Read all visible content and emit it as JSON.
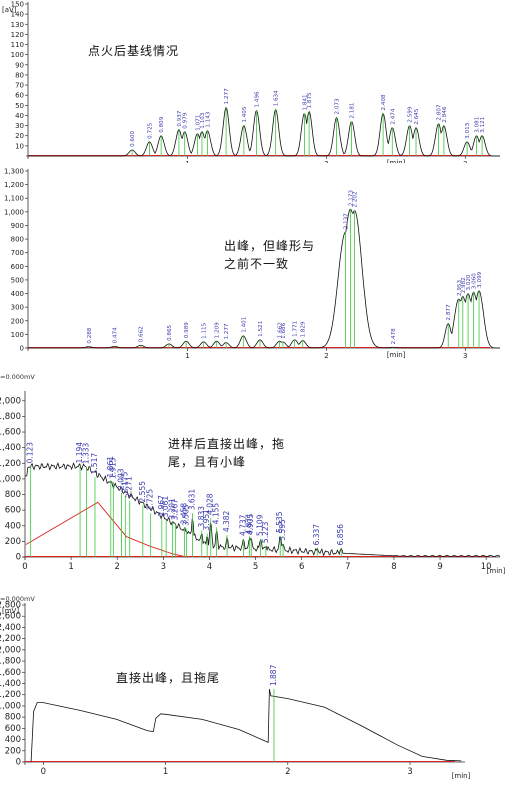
{
  "panels": [
    {
      "annotation": "点火后基线情况",
      "corner_label": "",
      "chart_data": {
        "type": "line",
        "xlabel": "[min]",
        "ylabel": "[aV]",
        "xlim": [
          -0.15,
          3.25
        ],
        "ylim": [
          0,
          150
        ],
        "xticks": [
          1,
          2,
          3
        ],
        "yticks": [
          10,
          20,
          30,
          40,
          50,
          60,
          70,
          80,
          90,
          100,
          110,
          120,
          130,
          140,
          150
        ],
        "peaks": [
          {
            "x": 0.6,
            "label": "0.600",
            "h": 6
          },
          {
            "x": 0.725,
            "label": "0.725",
            "h": 14
          },
          {
            "x": 0.809,
            "label": "0.809",
            "h": 20
          },
          {
            "x": 0.937,
            "label": "0.937",
            "h": 26
          },
          {
            "x": 0.979,
            "label": "0.979",
            "h": 24
          },
          {
            "x": 1.071,
            "label": "1.071",
            "h": 22
          },
          {
            "x": 1.103,
            "label": "1.103",
            "h": 24
          },
          {
            "x": 1.143,
            "label": "1.143",
            "h": 25
          },
          {
            "x": 1.277,
            "label": "1.277",
            "h": 48
          },
          {
            "x": 1.405,
            "label": "1.405",
            "h": 30
          },
          {
            "x": 1.496,
            "label": "1.496",
            "h": 45
          },
          {
            "x": 1.634,
            "label": "1.634",
            "h": 46
          },
          {
            "x": 1.841,
            "label": "1.841",
            "h": 42
          },
          {
            "x": 1.875,
            "label": "1.875",
            "h": 44
          },
          {
            "x": 2.073,
            "label": "2.073",
            "h": 38
          },
          {
            "x": 2.181,
            "label": "2.181",
            "h": 34
          },
          {
            "x": 2.408,
            "label": "2.408",
            "h": 42
          },
          {
            "x": 2.474,
            "label": "2.474",
            "h": 28
          },
          {
            "x": 2.599,
            "label": "2.599",
            "h": 30
          },
          {
            "x": 2.645,
            "label": "2.645",
            "h": 28
          },
          {
            "x": 2.807,
            "label": "2.807",
            "h": 32
          },
          {
            "x": 2.846,
            "label": "2.846",
            "h": 30
          },
          {
            "x": 3.013,
            "label": "3.013",
            "h": 14
          },
          {
            "x": 3.081,
            "label": "3.081",
            "h": 20
          },
          {
            "x": 3.121,
            "label": "3.121",
            "h": 20
          }
        ]
      }
    },
    {
      "annotation": "出峰，但峰形与\n之前不一致",
      "corner_label": "",
      "chart_data": {
        "type": "line",
        "xlabel": "[min]",
        "ylabel": "",
        "xlim": [
          -0.15,
          3.25
        ],
        "ylim": [
          0,
          1300
        ],
        "xticks": [
          1,
          2,
          3
        ],
        "yticks": [
          0,
          100,
          200,
          300,
          400,
          500,
          600,
          700,
          800,
          900,
          "1,000",
          "1,100",
          "1,200",
          "1,300"
        ],
        "peaks": [
          {
            "x": 0.288,
            "label": "0.288",
            "h": 10
          },
          {
            "x": 0.474,
            "label": "0.474",
            "h": 12
          },
          {
            "x": 0.662,
            "label": "0.662",
            "h": 20
          },
          {
            "x": 0.865,
            "label": "0.865",
            "h": 30
          },
          {
            "x": 0.989,
            "label": "0.989",
            "h": 50
          },
          {
            "x": 1.115,
            "label": "1.115",
            "h": 45
          },
          {
            "x": 1.209,
            "label": "1.209",
            "h": 50
          },
          {
            "x": 1.277,
            "label": "1.277",
            "h": 40
          },
          {
            "x": 1.401,
            "label": "1.401",
            "h": 90
          },
          {
            "x": 1.521,
            "label": "1.521",
            "h": 60
          },
          {
            "x": 1.662,
            "label": "1.662",
            "h": 50
          },
          {
            "x": 1.686,
            "label": "1.686",
            "h": 45
          },
          {
            "x": 1.771,
            "label": "1.771",
            "h": 60
          },
          {
            "x": 1.829,
            "label": "1.829",
            "h": 55
          },
          {
            "x": 2.137,
            "label": "2.137",
            "h": 850
          },
          {
            "x": 2.173,
            "label": "2.173",
            "h": 1020
          },
          {
            "x": 2.202,
            "label": "2.202",
            "h": 1010
          },
          {
            "x": 2.478,
            "label": "2.478",
            "h": 5
          },
          {
            "x": 2.877,
            "label": "2.877",
            "h": 180
          },
          {
            "x": 2.953,
            "label": "2.953",
            "h": 360
          },
          {
            "x": 2.982,
            "label": "2.982",
            "h": 380
          },
          {
            "x": 3.02,
            "label": "3.020",
            "h": 400
          },
          {
            "x": 3.06,
            "label": "3.060",
            "h": 410
          },
          {
            "x": 3.099,
            "label": "3.099",
            "h": 420
          }
        ]
      }
    },
    {
      "annotation": "进样后直接出峰，拖\n尾，且有小峰",
      "corner_label": "=0.000mV",
      "chart_data": {
        "type": "line",
        "xlabel": "[min]",
        "ylabel": "",
        "xlim": [
          0,
          10.3
        ],
        "ylim": [
          0,
          2100
        ],
        "xticks": [
          0,
          1,
          2,
          3,
          4,
          5,
          6,
          7,
          8,
          9,
          10
        ],
        "yticks": [
          0,
          200,
          400,
          600,
          800,
          "1,000",
          "1,200",
          "1,400",
          "1,600",
          "1,800",
          "2,000"
        ],
        "peaks": [
          {
            "x": 0.123,
            "label": "0.123",
            "h": 1160
          },
          {
            "x": 1.194,
            "label": "1.194",
            "h": 1160
          },
          {
            "x": 1.333,
            "label": "1.333",
            "h": 1150
          },
          {
            "x": 1.517,
            "label": "1.517",
            "h": 1020
          },
          {
            "x": 1.861,
            "label": "1.861",
            "h": 980
          },
          {
            "x": 1.915,
            "label": "1.915",
            "h": 960
          },
          {
            "x": 2.093,
            "label": "2.093",
            "h": 820
          },
          {
            "x": 2.175,
            "label": "2.175",
            "h": 780
          },
          {
            "x": 2.271,
            "label": "2.271",
            "h": 720
          },
          {
            "x": 2.555,
            "label": "2.555",
            "h": 660
          },
          {
            "x": 2.725,
            "label": "2.725",
            "h": 560
          },
          {
            "x": 2.967,
            "label": "2.967",
            "h": 480
          },
          {
            "x": 3.061,
            "label": "3.061",
            "h": 470
          },
          {
            "x": 3.201,
            "label": "3.201",
            "h": 440
          },
          {
            "x": 3.267,
            "label": "3.267",
            "h": 430
          },
          {
            "x": 3.458,
            "label": "3.458",
            "h": 380
          },
          {
            "x": 3.505,
            "label": "3.505",
            "h": 360
          },
          {
            "x": 3.631,
            "label": "3.631",
            "h": 560
          },
          {
            "x": 3.833,
            "label": "3.833",
            "h": 340
          },
          {
            "x": 3.951,
            "label": "3.951",
            "h": 300
          },
          {
            "x": 4.028,
            "label": "4.028",
            "h": 500
          },
          {
            "x": 4.155,
            "label": "4.155",
            "h": 380
          },
          {
            "x": 4.382,
            "label": "4.382",
            "h": 280
          },
          {
            "x": 4.737,
            "label": "4.737",
            "h": 230
          },
          {
            "x": 4.871,
            "label": "4.871",
            "h": 250
          },
          {
            "x": 4.905,
            "label": "4.905",
            "h": 240
          },
          {
            "x": 5.109,
            "label": "5.109",
            "h": 230
          },
          {
            "x": 5.223,
            "label": "5.223",
            "h": 140
          },
          {
            "x": 5.535,
            "label": "5.535",
            "h": 270
          },
          {
            "x": 5.595,
            "label": "5.595",
            "h": 170
          },
          {
            "x": 6.337,
            "label": "6.337",
            "h": 110
          },
          {
            "x": 6.856,
            "label": "6.856",
            "h": 110
          }
        ]
      }
    },
    {
      "annotation": "直接出峰，且拖尾",
      "corner_label": "=0.000mV",
      "chart_data": {
        "type": "line",
        "xlabel": "[min]",
        "ylabel": "[mV]",
        "xlim": [
          -0.15,
          3.45
        ],
        "ylim": [
          0,
          2800
        ],
        "xticks": [
          0,
          1,
          2,
          3
        ],
        "yticks": [
          0,
          200,
          400,
          600,
          800,
          "1,000",
          "1,200",
          "1,400",
          "1,600",
          "1,800",
          "2,000",
          "2,200",
          "2,400",
          "2,600",
          "2,800"
        ],
        "trace": [
          [
            -0.1,
            0
          ],
          [
            -0.08,
            900
          ],
          [
            -0.05,
            1060
          ],
          [
            0.0,
            1060
          ],
          [
            0.3,
            920
          ],
          [
            0.6,
            760
          ],
          [
            0.85,
            560
          ],
          [
            0.9,
            540
          ],
          [
            0.92,
            780
          ],
          [
            0.96,
            860
          ],
          [
            1.0,
            850
          ],
          [
            1.3,
            760
          ],
          [
            1.6,
            580
          ],
          [
            1.84,
            350
          ],
          [
            1.85,
            1300
          ],
          [
            1.86,
            1180
          ],
          [
            2.0,
            1130
          ],
          [
            2.3,
            980
          ],
          [
            2.6,
            650
          ],
          [
            2.9,
            300
          ],
          [
            3.1,
            100
          ],
          [
            3.3,
            30
          ],
          [
            3.42,
            20
          ]
        ],
        "peaks": [
          {
            "x": 1.887,
            "label": "1.887",
            "h": 1300
          }
        ]
      }
    }
  ]
}
